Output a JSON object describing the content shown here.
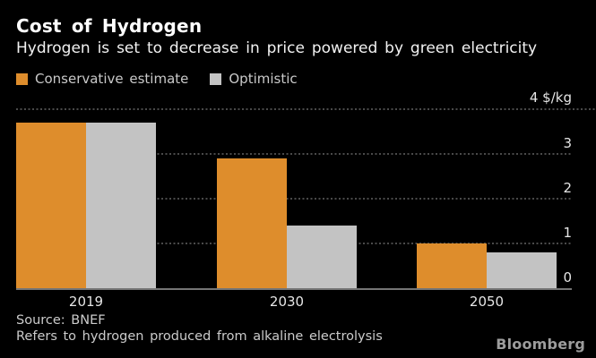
{
  "header": {
    "title": "Cost of Hydrogen",
    "subtitle": "Hydrogen is set to decrease in price powered by green electricity"
  },
  "legend": [
    {
      "label": "Conservative estimate",
      "color": "#DE8D2C"
    },
    {
      "label": "Optimistic",
      "color": "#C3C3C3"
    }
  ],
  "chart_data": {
    "type": "bar",
    "categories": [
      "2019",
      "2030",
      "2050"
    ],
    "series": [
      {
        "name": "Conservative estimate",
        "color": "#DE8D2C",
        "values": [
          3.7,
          2.9,
          1.0
        ]
      },
      {
        "name": "Optimistic",
        "color": "#C3C3C3",
        "values": [
          3.7,
          1.4,
          0.8
        ]
      }
    ],
    "unit_label": "4 $/kg",
    "y_ticks": [
      4,
      3,
      2,
      1,
      0
    ],
    "ylim": [
      0,
      4
    ],
    "grid": "horizontal-dotted",
    "legend_position": "top-left",
    "title": "Cost of Hydrogen",
    "xlabel": "",
    "ylabel": "$/kg"
  },
  "footer": {
    "source": "Source: BNEF",
    "note": "Refers to hydrogen produced from alkaline electrolysis",
    "brand": "Bloomberg"
  },
  "colors": {
    "background": "#000000",
    "title_text": "#FFFFFF",
    "conservative_orange": "#DE8D2C",
    "optimistic_gray": "#C3C3C3",
    "gridline": "#4A4A4A",
    "axis_line": "#757575",
    "tick_text": "#E6E6E6",
    "brand_text": "#9D9D9D"
  }
}
